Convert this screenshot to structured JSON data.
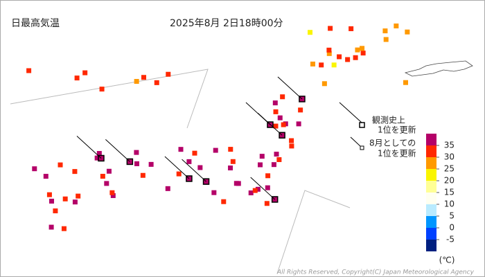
{
  "header": {
    "title": "日最高気温",
    "datetime": "2025年8月 2日18時00分"
  },
  "legend": {
    "record_all_time": [
      "観測史上",
      "1位を更新"
    ],
    "record_month": [
      "8月としての",
      "1位を更新"
    ]
  },
  "scale": {
    "unit": "(℃)",
    "ticks": [
      35,
      30,
      25,
      20,
      15,
      10,
      5,
      0,
      -5
    ],
    "colors": [
      "#b40068",
      "#ff2800",
      "#ff9900",
      "#faf500",
      "#ffff96",
      "#fffff0",
      "#b9ebff",
      "#0096ff",
      "#0041ff",
      "#002080"
    ]
  },
  "stations": [
    {
      "temp": 31
    },
    {
      "temp": 30
    },
    {
      "temp": 28
    },
    {
      "temp": 27
    },
    {
      "temp": 32
    },
    {
      "temp": 26
    },
    {
      "temp": 25
    },
    {
      "temp": 29
    },
    {
      "temp": 33
    },
    {
      "temp": 30
    },
    {
      "temp": 24
    },
    {
      "temp": 27
    },
    {
      "temp": 31
    },
    {
      "temp": 28
    },
    {
      "temp": 26
    },
    {
      "temp": 23
    },
    {
      "temp": 29
    },
    {
      "temp": 30
    },
    {
      "temp": 32
    },
    {
      "temp": 27
    },
    {
      "temp": 35
    },
    {
      "temp": 36,
      "record": true
    },
    {
      "temp": 34
    },
    {
      "temp": 33
    },
    {
      "temp": 36,
      "record": true
    },
    {
      "temp": 32
    },
    {
      "temp": 35
    },
    {
      "temp": 37,
      "record": true
    },
    {
      "temp": 34
    },
    {
      "temp": 31
    },
    {
      "temp": 33
    },
    {
      "temp": 35
    },
    {
      "temp": 36
    },
    {
      "temp": 34
    },
    {
      "temp": 32
    },
    {
      "temp": 36
    },
    {
      "temp": 35
    },
    {
      "temp": 37,
      "record": true
    },
    {
      "temp": 34
    },
    {
      "temp": 36
    },
    {
      "temp": 38,
      "record": true
    },
    {
      "temp": 35
    },
    {
      "temp": 33
    },
    {
      "temp": 36
    },
    {
      "temp": 37
    },
    {
      "temp": 34
    },
    {
      "temp": 35
    },
    {
      "temp": 36
    },
    {
      "temp": 32
    },
    {
      "temp": 37
    },
    {
      "temp": 35
    },
    {
      "temp": 34
    },
    {
      "temp": 36
    },
    {
      "temp": 33
    },
    {
      "temp": 35
    },
    {
      "temp": 36
    },
    {
      "temp": 37,
      "record": true
    },
    {
      "temp": 35
    },
    {
      "temp": 38,
      "record": true
    },
    {
      "temp": 36
    },
    {
      "temp": 34
    },
    {
      "temp": 37
    },
    {
      "temp": 35
    },
    {
      "temp": 36,
      "record": true
    },
    {
      "temp": 33
    },
    {
      "temp": 35
    },
    {
      "temp": 37
    },
    {
      "temp": 36
    },
    {
      "temp": 34
    },
    {
      "temp": 35
    },
    {
      "temp": 32
    },
    {
      "temp": 36
    },
    {
      "temp": 37
    },
    {
      "temp": 35
    },
    {
      "temp": 34
    },
    {
      "temp": 35
    },
    {
      "temp": 36
    },
    {
      "temp": 34
    },
    {
      "temp": 33
    },
    {
      "temp": 36
    },
    {
      "temp": 35
    },
    {
      "temp": 32
    },
    {
      "temp": 34
    },
    {
      "temp": 31
    },
    {
      "temp": 33
    },
    {
      "temp": 35
    },
    {
      "temp": 30
    },
    {
      "temp": 31
    },
    {
      "temp": 32
    },
    {
      "temp": 30
    },
    {
      "temp": 33
    },
    {
      "temp": 31
    },
    {
      "temp": 30
    },
    {
      "temp": 29
    },
    {
      "temp": 32
    }
  ],
  "footer": "All Rights Reserved, Copyright(C) Japan Meteorological Agency"
}
